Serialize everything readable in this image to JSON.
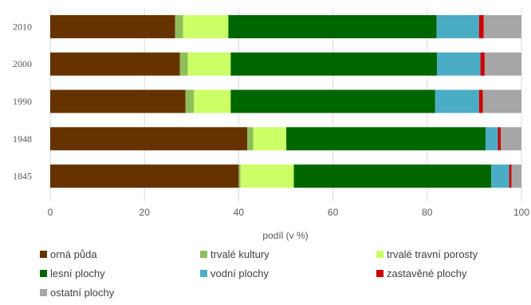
{
  "chart_data": {
    "type": "bar",
    "orientation": "horizontal",
    "stacked": true,
    "categories": [
      "2010",
      "2000",
      "1990",
      "1948",
      "1845"
    ],
    "xlabel": "podíl (v %)",
    "ylabel": "",
    "xlim": [
      0,
      100
    ],
    "xticks": [
      0,
      20,
      40,
      60,
      80,
      100
    ],
    "grid": true,
    "legend_position": "bottom",
    "series": [
      {
        "name": "orná půda",
        "color": "#663300",
        "values": [
          26.5,
          27.5,
          28.7,
          41.8,
          40
        ]
      },
      {
        "name": "trvalé kultury",
        "color": "#8FBF5A",
        "values": [
          1.7,
          1.7,
          1.8,
          1.3,
          0.4
        ]
      },
      {
        "name": "trvalé travní porosty",
        "color": "#CCFF66",
        "values": [
          9.6,
          9.1,
          7.8,
          7.0,
          11.3
        ]
      },
      {
        "name": "lesní plochy",
        "color": "#006600",
        "values": [
          44.2,
          43.8,
          43.4,
          42.3,
          41.9
        ]
      },
      {
        "name": "vodní plochy",
        "color": "#4BACC6",
        "values": [
          9.0,
          9.2,
          9.3,
          2.6,
          3.8
        ]
      },
      {
        "name": "zastavěné plochy",
        "color": "#CC0000",
        "values": [
          1.0,
          0.9,
          0.8,
          0.6,
          0.5
        ]
      },
      {
        "name": "ostatní plochy",
        "color": "#A6A6A6",
        "values": [
          8.0,
          7.8,
          8.2,
          4.4,
          2.1
        ]
      }
    ]
  }
}
